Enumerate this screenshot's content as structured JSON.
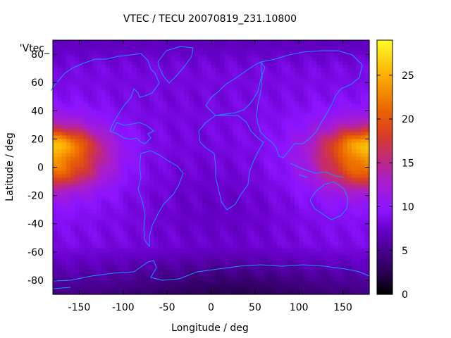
{
  "chart_data": {
    "type": "heatmap",
    "title": "VTEC / TECU 20070819_231.10800",
    "xlabel": "Longitude / deg",
    "ylabel": "Latitude / deg",
    "series_label": "'Vtec_",
    "xlim": [
      -180,
      180
    ],
    "ylim": [
      -90,
      90
    ],
    "xticks": [
      -150,
      -100,
      -50,
      0,
      50,
      100,
      150
    ],
    "yticks": [
      -80,
      -60,
      -40,
      -20,
      0,
      20,
      40,
      60,
      80
    ],
    "colorbar": {
      "range": [
        0,
        29
      ],
      "ticks": [
        0,
        5,
        10,
        15,
        20,
        25
      ],
      "palette": "black-purple-magenta-red-orange-yellow"
    },
    "grid_resolution": {
      "lon_step_deg": 5,
      "lat_step_deg": 2.5
    },
    "features": [
      {
        "description": "equatorial TEC maximum",
        "lon_center": 180,
        "lat_center": 10,
        "peak_tecu": 27
      },
      {
        "description": "equatorial crest (north)",
        "lon_center": 180,
        "lat_center": 16,
        "peak_tecu": 23
      },
      {
        "description": "equatorial crest (south)",
        "lon_center": 180,
        "lat_center": -5,
        "peak_tecu": 20
      },
      {
        "description": "southern polar minimum",
        "lon_center": 20,
        "lat_center": -80,
        "peak_tecu": 1
      }
    ],
    "background_tecu": 8
  }
}
